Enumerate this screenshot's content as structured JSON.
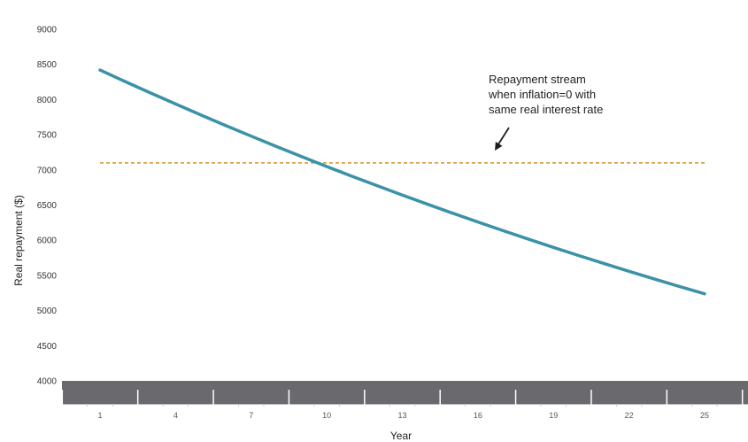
{
  "chart_data": {
    "type": "line",
    "title": "",
    "xlabel": "Year",
    "ylabel": "Real repayment ($)",
    "ylim": [
      4000,
      9000
    ],
    "xlim": [
      0,
      28
    ],
    "yticks": [
      4000,
      4500,
      5000,
      5500,
      6000,
      6500,
      7000,
      7500,
      8000,
      8500,
      9000
    ],
    "xticks": [
      1,
      4,
      7,
      10,
      13,
      16,
      19,
      22,
      25
    ],
    "grid": false,
    "colors": {
      "decline": "#3b92a8",
      "constant": "#d9a24a",
      "axis_band": "#6a6a6e"
    },
    "series": [
      {
        "x": [
          1,
          2,
          3,
          4,
          5,
          6,
          7,
          8,
          9,
          10,
          11,
          12,
          13,
          14,
          15,
          16,
          17,
          18,
          19,
          20,
          21,
          22,
          23,
          24,
          25
        ],
        "values": [
          8420,
          8255,
          8095,
          7937,
          7782,
          7629,
          7480,
          7333,
          7189,
          7048,
          6910,
          6775,
          6642,
          6512,
          6384,
          6259,
          6136,
          6016,
          5898,
          5782,
          5669,
          5558,
          5449,
          5342,
          5238
        ]
      },
      {
        "x": [
          1,
          25
        ],
        "values": [
          7100,
          7100
        ],
        "style": "dashed"
      }
    ],
    "annotations": [
      {
        "lines": [
          "Repayment stream",
          "when inflation=0 with",
          "same real interest rate"
        ]
      }
    ]
  }
}
